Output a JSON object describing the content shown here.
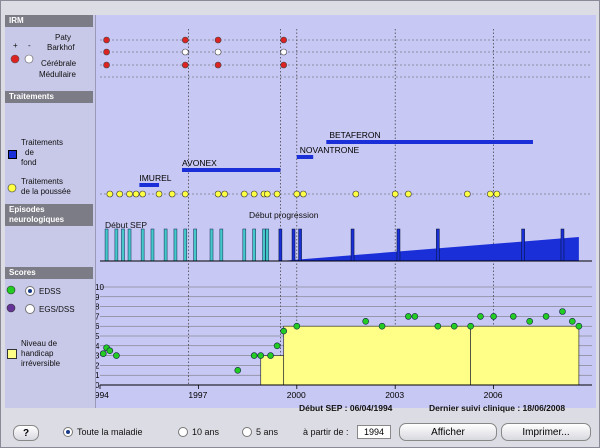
{
  "sidebar": {
    "irm_header": "IRM",
    "plus": "+",
    "minus": "-",
    "paty": "Paty",
    "barkhof": "Barkhof",
    "cerebrale": "Cérébrale",
    "medullaire": "Médullaire",
    "traitements_header": "Traitements",
    "trait_fond_1": "Traitements",
    "trait_fond_2": "de",
    "trait_fond_3": "fond",
    "trait_poussee_1": "Traitements",
    "trait_poussee_2": "de la poussée",
    "episodes_1": "Episodes",
    "episodes_2": "neurologiques",
    "scores_header": "Scores",
    "edss": "EDSS",
    "egs": "EGS/DSS",
    "handicap_1": "Niveau de",
    "handicap_2": "handicap",
    "handicap_3": "irréversible"
  },
  "annotations": {
    "debut_sep": "Début SEP",
    "debut_progression": "Début progression"
  },
  "info": {
    "debut_sep_label": "Début SEP : 06/04/1994",
    "dernier_suivi": "Dernier suivi clinique : 18/06/2008"
  },
  "footer": {
    "help": "?",
    "toute": "Toute la maladie",
    "dix": "10 ans",
    "cinq": "5 ans",
    "a_partir": "à partir de :",
    "year_value": "1994",
    "afficher": "Afficher",
    "imprimer": "Imprimer..."
  },
  "colors": {
    "plot_bg": "#c8c8f4",
    "blue": "#1a2fd8",
    "cyan": "#44c8c8",
    "yellow": "#ffff88",
    "green": "#22cc22",
    "red": "#dd2222"
  },
  "chart_data": {
    "type": "timeline",
    "x_range": [
      1994,
      2009
    ],
    "x_ticks": [
      "1994",
      "1997",
      "2000",
      "2003",
      "2006"
    ],
    "vlines": [
      1996.7,
      1999.5,
      2000,
      2003,
      2006
    ],
    "irm_rows": [
      {
        "name": "Paty",
        "points": [
          {
            "x": 1994.2,
            "c": "red"
          },
          {
            "x": 1996.6,
            "c": "red"
          },
          {
            "x": 1997.6,
            "c": "red"
          },
          {
            "x": 1999.6,
            "c": "red"
          }
        ]
      },
      {
        "name": "Barkhof",
        "points": [
          {
            "x": 1994.2,
            "c": "red"
          },
          {
            "x": 1996.6,
            "c": "white"
          },
          {
            "x": 1997.6,
            "c": "white"
          },
          {
            "x": 1999.6,
            "c": "white"
          }
        ]
      },
      {
        "name": "Cérébrale",
        "points": [
          {
            "x": 1994.2,
            "c": "red"
          },
          {
            "x": 1996.6,
            "c": "red"
          },
          {
            "x": 1997.6,
            "c": "red"
          },
          {
            "x": 1999.6,
            "c": "red"
          }
        ]
      }
    ],
    "treatments": [
      {
        "name": "IMUREL",
        "start": 1995.2,
        "end": 1995.8
      },
      {
        "name": "AVONEX",
        "start": 1996.5,
        "end": 1999.5
      },
      {
        "name": "NOVANTRONE",
        "start": 2000,
        "end": 2000.5
      },
      {
        "name": "BETAFERON",
        "start": 2000.9,
        "end": 2007.2
      }
    ],
    "pushes": [
      1994.3,
      1994.6,
      1994.9,
      1995.1,
      1995.3,
      1995.8,
      1996.2,
      1996.6,
      1997.6,
      1997.8,
      1998.4,
      1998.7,
      1999.0,
      1999.1,
      1999.4,
      2000.0,
      2000.2,
      2001.8,
      2003.0,
      2003.4,
      2005.2,
      2005.9,
      2006.1
    ],
    "relapses_cyan": [
      1994.2,
      1994.5,
      1994.7,
      1994.9,
      1995.3,
      1995.6,
      1996.0,
      1996.3,
      1996.6,
      1996.9,
      1997.4,
      1997.7,
      1998.4,
      1998.7,
      1999.0,
      1999.1
    ],
    "relapses_blue": [
      1999.5,
      1999.9,
      2000.1,
      2001.7,
      2003.1,
      2004.3,
      2006.9,
      2008.1
    ],
    "progression_start": 1999.5,
    "progression_end": 2008.6,
    "edss": [
      [
        1994.1,
        3.2
      ],
      [
        1994.2,
        3.8
      ],
      [
        1994.3,
        3.5
      ],
      [
        1994.5,
        3.0
      ],
      [
        1998.2,
        1.5
      ],
      [
        1998.7,
        3.0
      ],
      [
        1998.9,
        3.0
      ],
      [
        1999.2,
        3.0
      ],
      [
        1999.4,
        4.0
      ],
      [
        1999.6,
        5.5
      ],
      [
        2000.0,
        6.0
      ],
      [
        2002.1,
        6.5
      ],
      [
        2002.6,
        6.0
      ],
      [
        2003.4,
        7.0
      ],
      [
        2003.6,
        7.0
      ],
      [
        2004.3,
        6.0
      ],
      [
        2004.8,
        6.0
      ],
      [
        2005.3,
        6.0
      ],
      [
        2005.6,
        7.0
      ],
      [
        2006.0,
        7.0
      ],
      [
        2006.6,
        7.0
      ],
      [
        2007.1,
        6.5
      ],
      [
        2007.6,
        7.0
      ],
      [
        2008.1,
        7.5
      ],
      [
        2008.4,
        6.5
      ],
      [
        2008.6,
        6.0
      ]
    ],
    "handicap": [
      {
        "start": 1998.9,
        "end": 1999.6,
        "level": 3
      },
      {
        "start": 1999.6,
        "end": 2005.3,
        "level": 6
      },
      {
        "start": 2005.3,
        "end": 2008.6,
        "level": 6
      }
    ],
    "score_ticks": [
      "0",
      "1",
      "2",
      "3",
      "4",
      "5",
      "6",
      "7",
      "8",
      "9",
      "10"
    ]
  }
}
